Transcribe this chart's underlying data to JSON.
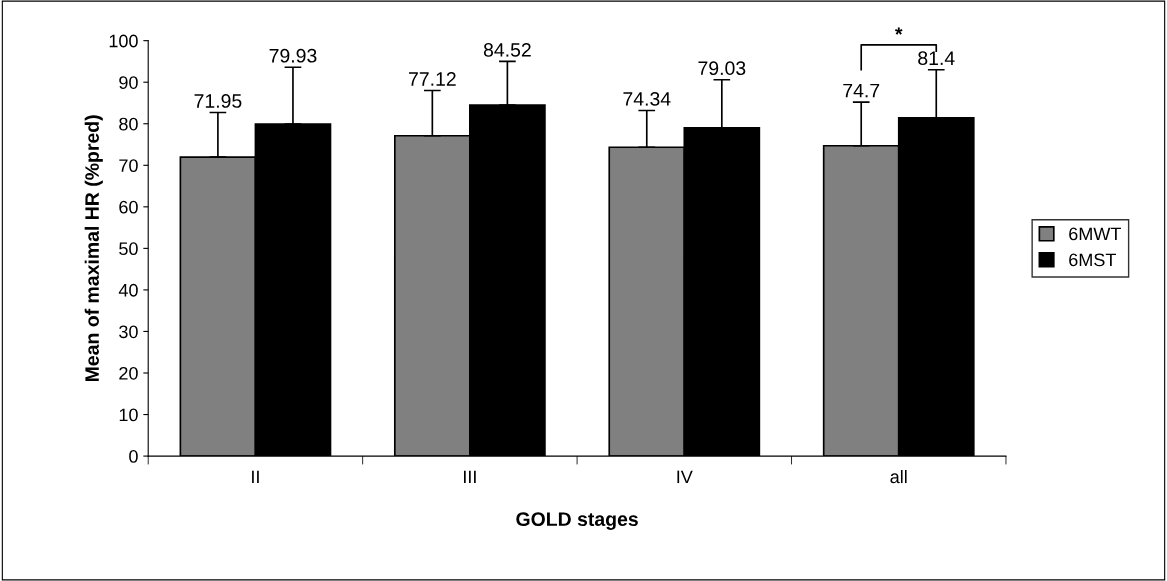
{
  "chart_data": {
    "type": "bar",
    "xlabel": "GOLD stages",
    "ylabel": "Mean of maximal HR (%pred)",
    "categories": [
      "II",
      "III",
      "IV",
      "all"
    ],
    "series": [
      {
        "name": "6MWT",
        "color": "#808080",
        "values": [
          71.95,
          77.12,
          74.34,
          74.7
        ],
        "errors": [
          [
            71.95,
            82.7
          ],
          [
            77.12,
            88.0
          ],
          [
            74.34,
            83.2
          ],
          [
            74.7,
            85.2
          ]
        ]
      },
      {
        "name": "6MST",
        "color": "#000000",
        "values": [
          79.93,
          84.52,
          79.03,
          81.4
        ],
        "errors": [
          [
            79.93,
            93.6
          ],
          [
            84.52,
            95.0
          ],
          [
            79.03,
            90.6
          ],
          [
            81.4,
            93.0
          ]
        ]
      }
    ],
    "data_labels": true,
    "ylim": [
      0,
      100
    ],
    "yticks": [
      0,
      10,
      20,
      30,
      40,
      50,
      60,
      70,
      80,
      90,
      100
    ],
    "grid": false,
    "legend": "right",
    "annotations": [
      "*"
    ]
  }
}
